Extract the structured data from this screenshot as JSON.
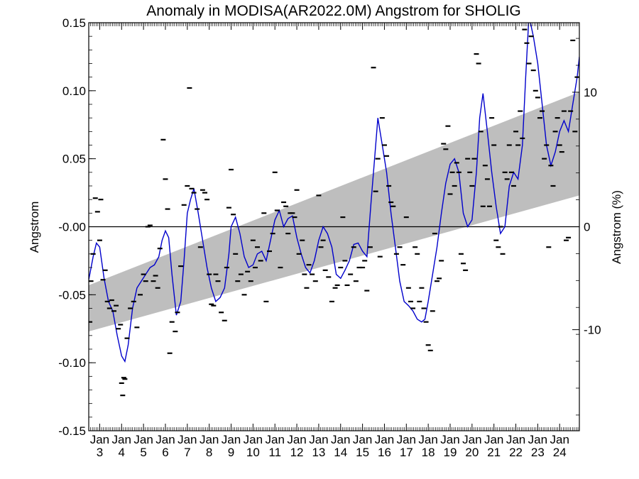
{
  "chart_data": {
    "type": "line",
    "title": "Anomaly in MODISA(AR2022.0M) Angstrom for SHOLIG",
    "xlabel": "",
    "ylabel": "Angstrom",
    "ylabel_right": "Angstrom (%)",
    "xlim": [
      2002.5,
      2024.9
    ],
    "ylim": [
      -0.15,
      0.15
    ],
    "y_ticks": [
      "0.15",
      "0.10",
      "0.05",
      "-0.00",
      "-0.05",
      "-0.10",
      "-0.15"
    ],
    "y_tick_values": [
      0.15,
      0.1,
      0.05,
      0.0,
      -0.05,
      -0.1,
      -0.15
    ],
    "y2_ticks": [
      "10",
      "0",
      "-10"
    ],
    "y2_tick_values": [
      0.0989,
      0.0,
      -0.0757
    ],
    "x_tick_top": "Jan",
    "x_tick_years": [
      "3",
      "4",
      "5",
      "6",
      "7",
      "8",
      "9",
      "10",
      "11",
      "12",
      "13",
      "14",
      "15",
      "16",
      "17",
      "18",
      "19",
      "20",
      "21",
      "22",
      "23",
      "24"
    ],
    "x_tick_values": [
      2003,
      2004,
      2005,
      2006,
      2007,
      2008,
      2009,
      2010,
      2011,
      2012,
      2013,
      2014,
      2015,
      2016,
      2017,
      2018,
      2019,
      2020,
      2021,
      2022,
      2023,
      2024
    ],
    "zero_line": 0.0,
    "trend_band": {
      "x": [
        2002.5,
        2024.9
      ],
      "upper": [
        -0.043,
        0.099
      ],
      "lower": [
        -0.077,
        0.023
      ],
      "color": "#bebebe"
    },
    "series": [
      {
        "style": "line",
        "color": "#0000cc",
        "x": [
          2002.5,
          2002.7,
          2002.85,
          2003.0,
          2003.2,
          2003.4,
          2003.6,
          2003.8,
          2004.0,
          2004.15,
          2004.3,
          2004.5,
          2004.7,
          2004.9,
          2005.1,
          2005.3,
          2005.5,
          2005.7,
          2005.85,
          2006.0,
          2006.15,
          2006.3,
          2006.5,
          2006.7,
          2006.85,
          2007.0,
          2007.15,
          2007.3,
          2007.5,
          2007.7,
          2007.9,
          2008.1,
          2008.3,
          2008.5,
          2008.7,
          2008.9,
          2009.0,
          2009.2,
          2009.4,
          2009.6,
          2009.8,
          2010.0,
          2010.2,
          2010.4,
          2010.6,
          2010.8,
          2011.0,
          2011.2,
          2011.4,
          2011.6,
          2011.8,
          2012.0,
          2012.2,
          2012.4,
          2012.6,
          2012.8,
          2013.0,
          2013.2,
          2013.4,
          2013.6,
          2013.8,
          2014.0,
          2014.2,
          2014.4,
          2014.6,
          2014.8,
          2015.0,
          2015.2,
          2015.4,
          2015.55,
          2015.7,
          2015.9,
          2016.1,
          2016.3,
          2016.5,
          2016.7,
          2016.9,
          2017.1,
          2017.3,
          2017.5,
          2017.7,
          2017.85,
          2018.0,
          2018.2,
          2018.4,
          2018.6,
          2018.8,
          2019.0,
          2019.2,
          2019.4,
          2019.6,
          2019.8,
          2020.0,
          2020.2,
          2020.35,
          2020.5,
          2020.7,
          2020.9,
          2021.1,
          2021.3,
          2021.5,
          2021.7,
          2021.9,
          2022.1,
          2022.3,
          2022.45,
          2022.6,
          2022.8,
          2023.0,
          2023.2,
          2023.4,
          2023.6,
          2023.8,
          2024.0,
          2024.2,
          2024.4,
          2024.6,
          2024.8,
          2024.9
        ],
        "y": [
          -0.039,
          -0.022,
          -0.012,
          -0.015,
          -0.038,
          -0.055,
          -0.062,
          -0.08,
          -0.095,
          -0.099,
          -0.087,
          -0.06,
          -0.045,
          -0.04,
          -0.035,
          -0.03,
          -0.028,
          -0.022,
          -0.01,
          -0.003,
          -0.008,
          -0.035,
          -0.065,
          -0.055,
          -0.025,
          0.01,
          0.02,
          0.028,
          0.01,
          -0.01,
          -0.03,
          -0.045,
          -0.055,
          -0.052,
          -0.045,
          -0.02,
          0.0,
          0.007,
          -0.005,
          -0.022,
          -0.03,
          -0.028,
          -0.02,
          -0.018,
          -0.025,
          -0.01,
          0.005,
          0.012,
          0.0,
          0.006,
          0.008,
          -0.008,
          -0.02,
          -0.03,
          -0.034,
          -0.025,
          -0.01,
          0.0,
          -0.005,
          -0.015,
          -0.035,
          -0.038,
          -0.032,
          -0.025,
          -0.013,
          -0.012,
          -0.018,
          -0.022,
          0.02,
          0.05,
          0.08,
          0.06,
          0.04,
          0.01,
          -0.015,
          -0.04,
          -0.055,
          -0.058,
          -0.062,
          -0.068,
          -0.07,
          -0.068,
          -0.055,
          -0.035,
          -0.015,
          0.01,
          0.032,
          0.046,
          0.05,
          0.04,
          0.01,
          0.0,
          0.005,
          0.04,
          0.08,
          0.098,
          0.07,
          0.04,
          0.015,
          -0.005,
          0.0,
          0.03,
          0.04,
          0.035,
          0.06,
          0.11,
          0.155,
          0.14,
          0.12,
          0.09,
          0.06,
          0.045,
          0.055,
          0.07,
          0.078,
          0.07,
          0.09,
          0.11,
          0.125
        ]
      },
      {
        "style": "dash",
        "color": "#000000",
        "x": [
          2002.55,
          2002.6,
          2002.7,
          2002.8,
          2002.9,
          2003.0,
          2003.05,
          2003.15,
          2003.25,
          2003.35,
          2003.45,
          2003.55,
          2003.65,
          2003.75,
          2003.85,
          2003.95,
          2004.0,
          2004.05,
          2004.1,
          2004.15,
          2004.25,
          2004.4,
          2004.55,
          2004.7,
          2004.85,
          2005.0,
          2005.1,
          2005.2,
          2005.3,
          2005.45,
          2005.55,
          2005.65,
          2005.75,
          2005.9,
          2006.0,
          2006.1,
          2006.2,
          2006.3,
          2006.45,
          2006.55,
          2006.7,
          2006.85,
          2007.0,
          2007.1,
          2007.2,
          2007.3,
          2007.45,
          2007.6,
          2007.7,
          2007.8,
          2007.9,
          2008.0,
          2008.1,
          2008.2,
          2008.3,
          2008.4,
          2008.55,
          2008.7,
          2008.8,
          2008.9,
          2009.0,
          2009.1,
          2009.2,
          2009.3,
          2009.45,
          2009.6,
          2009.75,
          2009.9,
          2010.0,
          2010.1,
          2010.2,
          2010.35,
          2010.5,
          2010.6,
          2010.75,
          2010.9,
          2011.0,
          2011.1,
          2011.25,
          2011.4,
          2011.5,
          2011.6,
          2011.7,
          2011.8,
          2011.9,
          2012.0,
          2012.1,
          2012.25,
          2012.35,
          2012.45,
          2012.55,
          2012.7,
          2012.85,
          2013.0,
          2013.1,
          2013.2,
          2013.3,
          2013.45,
          2013.6,
          2013.75,
          2013.85,
          2014.0,
          2014.1,
          2014.2,
          2014.3,
          2014.45,
          2014.6,
          2014.7,
          2014.85,
          2015.0,
          2015.1,
          2015.2,
          2015.35,
          2015.5,
          2015.6,
          2015.7,
          2015.8,
          2015.9,
          2016.0,
          2016.1,
          2016.2,
          2016.3,
          2016.4,
          2016.55,
          2016.7,
          2016.85,
          2017.0,
          2017.1,
          2017.2,
          2017.3,
          2017.4,
          2017.5,
          2017.6,
          2017.7,
          2017.8,
          2017.9,
          2018.0,
          2018.1,
          2018.2,
          2018.3,
          2018.4,
          2018.5,
          2018.6,
          2018.7,
          2018.8,
          2018.9,
          2019.0,
          2019.1,
          2019.2,
          2019.3,
          2019.4,
          2019.5,
          2019.6,
          2019.7,
          2019.8,
          2019.9,
          2020.0,
          2020.1,
          2020.2,
          2020.3,
          2020.4,
          2020.5,
          2020.6,
          2020.7,
          2020.8,
          2020.9,
          2021.0,
          2021.1,
          2021.2,
          2021.3,
          2021.4,
          2021.5,
          2021.6,
          2021.7,
          2021.8,
          2021.9,
          2022.0,
          2022.1,
          2022.2,
          2022.3,
          2022.4,
          2022.5,
          2022.6,
          2022.7,
          2022.8,
          2022.9,
          2023.0,
          2023.1,
          2023.2,
          2023.3,
          2023.4,
          2023.5,
          2023.6,
          2023.7,
          2023.8,
          2023.9,
          2024.0,
          2024.1,
          2024.2,
          2024.3,
          2024.4,
          2024.5,
          2024.6,
          2024.7,
          2024.8
        ],
        "y": [
          -0.07,
          -0.04,
          -0.02,
          0.021,
          0.011,
          -0.01,
          0.02,
          -0.039,
          -0.032,
          -0.055,
          -0.06,
          -0.054,
          -0.062,
          -0.058,
          -0.075,
          -0.072,
          -0.115,
          -0.124,
          -0.111,
          -0.112,
          -0.082,
          -0.06,
          -0.055,
          -0.074,
          -0.05,
          -0.035,
          -0.04,
          0.0,
          0.001,
          -0.04,
          -0.036,
          -0.045,
          -0.016,
          0.064,
          0.035,
          0.013,
          -0.093,
          -0.07,
          -0.077,
          -0.063,
          -0.029,
          0.016,
          0.03,
          0.102,
          0.028,
          0.025,
          0.013,
          -0.015,
          0.027,
          0.025,
          0.02,
          -0.035,
          -0.057,
          -0.058,
          -0.035,
          -0.04,
          -0.063,
          -0.069,
          -0.03,
          0.014,
          0.042,
          0.009,
          -0.02,
          -0.04,
          -0.035,
          -0.05,
          -0.033,
          -0.04,
          -0.01,
          -0.03,
          -0.015,
          -0.025,
          0.01,
          -0.055,
          -0.018,
          -0.005,
          0.04,
          0.012,
          -0.03,
          0.018,
          0.015,
          -0.005,
          0.01,
          0.01,
          0.007,
          0.027,
          -0.02,
          -0.01,
          -0.035,
          -0.045,
          -0.028,
          -0.035,
          -0.04,
          0.023,
          -0.015,
          -0.01,
          -0.032,
          -0.037,
          -0.055,
          -0.045,
          -0.043,
          -0.03,
          0.007,
          -0.025,
          -0.043,
          -0.035,
          -0.015,
          -0.04,
          -0.03,
          -0.03,
          -0.025,
          -0.047,
          -0.015,
          0.117,
          0.026,
          0.05,
          -0.022,
          0.08,
          0.06,
          0.052,
          0.03,
          0.018,
          0.015,
          -0.02,
          -0.015,
          -0.028,
          0.007,
          -0.045,
          -0.055,
          -0.06,
          -0.015,
          -0.02,
          -0.055,
          -0.045,
          -0.06,
          -0.07,
          -0.087,
          -0.091,
          -0.062,
          -0.005,
          -0.04,
          -0.038,
          -0.025,
          0.061,
          0.057,
          0.074,
          0.024,
          0.04,
          0.03,
          0.047,
          0.04,
          -0.02,
          -0.027,
          -0.032,
          0.05,
          0.04,
          0.03,
          0.05,
          0.127,
          0.12,
          0.07,
          0.015,
          0.045,
          0.035,
          0.015,
          0.08,
          0.06,
          -0.01,
          -0.015,
          0.0,
          -0.02,
          0.04,
          0.035,
          0.06,
          0.04,
          0.03,
          0.07,
          0.06,
          0.085,
          0.065,
          0.145,
          0.135,
          0.12,
          0.14,
          0.115,
          0.1,
          0.095,
          0.08,
          0.085,
          0.05,
          0.06,
          -0.015,
          0.045,
          0.03,
          0.07,
          0.08,
          0.06,
          0.055,
          0.085,
          -0.01,
          -0.008,
          0.085,
          0.137,
          0.07,
          0.11
        ]
      }
    ]
  }
}
